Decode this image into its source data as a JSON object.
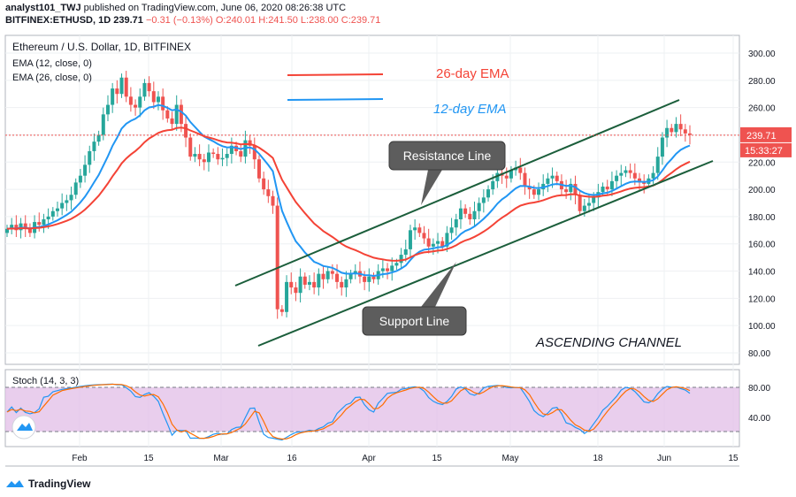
{
  "header": {
    "line1_user": "analyst101_TWJ",
    "line1_rest": "published on TradingView.com, June 06, 2020 08:26:38 UTC",
    "line2_symbol": "BITFINEX:ETHUSD, 1D",
    "line2_price": "239.71",
    "line2_change": "−0.31 (−0.13%)",
    "line2_ohlc": "O:240.01 H:241.50 L:238.00 C:239.71"
  },
  "legend": {
    "title": "Ethereum / U.S. Dollar, 1D, BITFINEX",
    "ema12": "EMA (12, close, 0)",
    "ema26": "EMA (26, close, 0)",
    "stoch": "Stoch (14, 3, 3)"
  },
  "annotations": {
    "ema26_label": "26-day EMA",
    "ema12_label": "12-day EMA",
    "resistance": "Resistance Line",
    "support": "Support Line",
    "channel": "ASCENDING CHANNEL"
  },
  "price_badge": "239.71",
  "countdown_badge": "15:33:27",
  "footer": {
    "brand": "TradingView"
  },
  "colors": {
    "up": "#26a69a",
    "down": "#ef5350",
    "ema12": "#2196f3",
    "ema26": "#f44336",
    "channel": "#1b5e3b",
    "stoch_bg": "#e1bee7",
    "stoch_k": "#2196f3",
    "stoch_d": "#ff6d00",
    "callout": "#5d5d5d"
  },
  "chart_data": {
    "type": "candlestick",
    "symbol": "ETHUSD",
    "timeframe": "1D",
    "x_tick_labels": [
      "Feb",
      "15",
      "Mar",
      "16",
      "Apr",
      "15",
      "May",
      "18",
      "Jun",
      "15"
    ],
    "y_tick_labels": [
      "300.00",
      "280.00",
      "260.00",
      "240.00",
      "220.00",
      "200.00",
      "180.00",
      "160.00",
      "140.00",
      "120.00",
      "100.00",
      "80.00"
    ],
    "y_range": [
      80,
      300
    ],
    "stoch_tick_labels": [
      "80.00",
      "40.00"
    ],
    "closes": [
      171,
      174,
      170,
      175,
      172,
      168,
      176,
      174,
      178,
      180,
      184,
      186,
      190,
      192,
      196,
      205,
      210,
      218,
      228,
      235,
      240,
      255,
      262,
      274,
      270,
      282,
      268,
      262,
      260,
      268,
      278,
      272,
      264,
      268,
      258,
      252,
      248,
      262,
      248,
      238,
      224,
      226,
      222,
      220,
      227,
      226,
      222,
      223,
      226,
      232,
      228,
      224,
      236,
      232,
      222,
      208,
      200,
      195,
      188,
      112,
      110,
      132,
      128,
      124,
      136,
      130,
      132,
      128,
      138,
      134,
      140,
      138,
      132,
      128,
      134,
      138,
      140,
      136,
      132,
      136,
      134,
      140,
      142,
      140,
      144,
      146,
      152,
      156,
      170,
      172,
      168,
      164,
      158,
      160,
      162,
      158,
      168,
      172,
      178,
      186,
      182,
      178,
      184,
      190,
      194,
      200,
      206,
      212,
      210,
      208,
      214,
      216,
      212,
      202,
      200,
      196,
      200,
      204,
      208,
      210,
      206,
      200,
      198,
      204,
      196,
      184,
      188,
      190,
      194,
      198,
      202,
      200,
      206,
      210,
      212,
      214,
      212,
      208,
      205,
      204,
      208,
      212,
      224,
      238,
      245,
      242,
      248,
      244,
      241,
      240
    ],
    "ema12_labeled": "12-day EMA",
    "ema26_labeled": "26-day EMA",
    "resistance_line": {
      "start": [
        "2020-03-13",
        130
      ],
      "end": [
        "2020-06-03",
        265
      ]
    },
    "support_line": {
      "start": [
        "2020-03-13",
        86
      ],
      "end": [
        "2020-06-08",
        232
      ]
    }
  }
}
